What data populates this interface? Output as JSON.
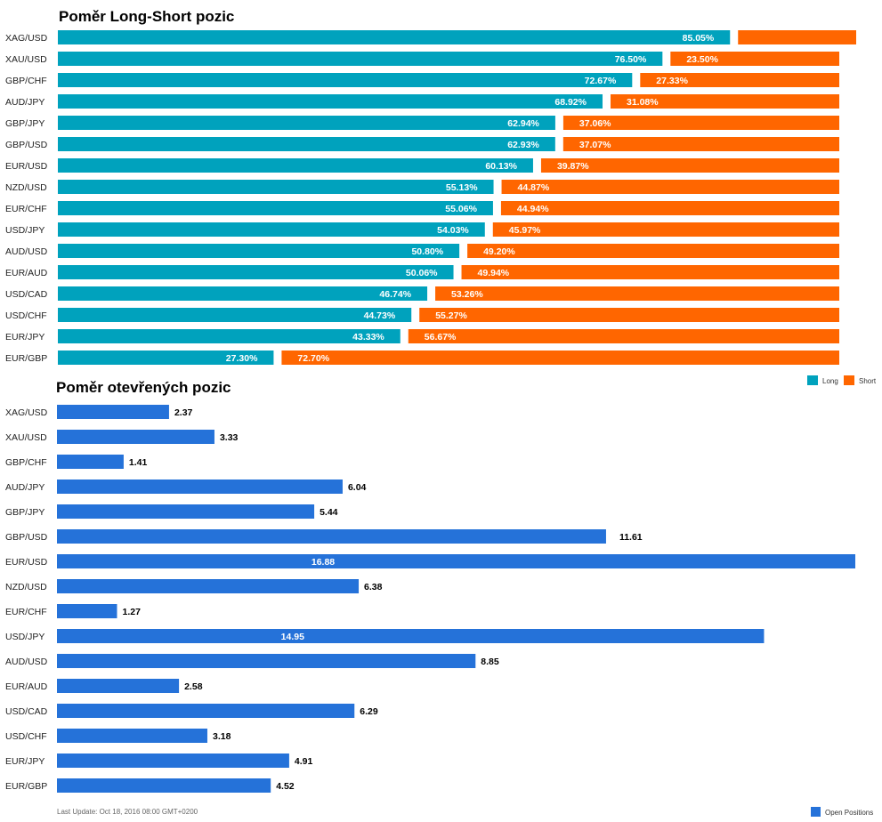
{
  "colors": {
    "long": "#00a2bd",
    "short": "#ff6600",
    "open": "#2572d9"
  },
  "chart_data": [
    {
      "type": "bar",
      "stacked": "percent",
      "orientation": "horizontal",
      "title": "Poměr Long-Short pozic",
      "categories": [
        "XAG/USD",
        "XAU/USD",
        "GBP/CHF",
        "AUD/JPY",
        "GBP/JPY",
        "GBP/USD",
        "EUR/USD",
        "NZD/USD",
        "EUR/CHF",
        "USD/JPY",
        "AUD/USD",
        "EUR/AUD",
        "USD/CAD",
        "USD/CHF",
        "EUR/JPY",
        "EUR/GBP"
      ],
      "series": [
        {
          "name": "Long",
          "values": [
            85.05,
            76.5,
            72.67,
            68.92,
            62.94,
            62.93,
            60.13,
            55.13,
            55.06,
            54.03,
            50.8,
            50.06,
            46.74,
            44.73,
            43.33,
            27.3
          ]
        },
        {
          "name": "Short",
          "values": [
            14.95,
            23.5,
            27.33,
            31.08,
            37.06,
            37.07,
            39.87,
            44.87,
            44.94,
            45.97,
            49.2,
            49.94,
            53.26,
            55.27,
            56.67,
            72.7
          ]
        }
      ],
      "data_labels": {
        "Long": [
          "85.05%",
          "76.50%",
          "72.67%",
          "68.92%",
          "62.94%",
          "62.93%",
          "60.13%",
          "55.13%",
          "55.06%",
          "54.03%",
          "50.80%",
          "50.06%",
          "46.74%",
          "44.73%",
          "43.33%",
          "27.30%"
        ],
        "Short": [
          "",
          "23.50%",
          "27.33%",
          "31.08%",
          "37.06%",
          "37.07%",
          "39.87%",
          "44.87%",
          "44.94%",
          "45.97%",
          "49.20%",
          "49.94%",
          "53.26%",
          "55.27%",
          "56.67%",
          "72.70%"
        ]
      },
      "legend_position": "bottom-right",
      "grid": false
    },
    {
      "type": "bar",
      "orientation": "horizontal",
      "title": "Poměr otevřených pozic",
      "categories": [
        "XAG/USD",
        "XAU/USD",
        "GBP/CHF",
        "AUD/JPY",
        "GBP/JPY",
        "GBP/USD",
        "EUR/USD",
        "NZD/USD",
        "EUR/CHF",
        "USD/JPY",
        "AUD/USD",
        "EUR/AUD",
        "USD/CAD",
        "USD/CHF",
        "EUR/JPY",
        "EUR/GBP"
      ],
      "series": [
        {
          "name": "Open Positions",
          "values": [
            2.37,
            3.33,
            1.41,
            6.04,
            5.44,
            11.61,
            16.88,
            6.38,
            1.27,
            14.95,
            8.85,
            2.58,
            6.29,
            3.18,
            4.91,
            4.52
          ]
        }
      ],
      "xlim": [
        0,
        16.88
      ],
      "legend_position": "bottom-right",
      "grid": false
    }
  ],
  "footer": {
    "last_update": "Last Update: Oct 18, 2016 08:00 GMT+0200"
  }
}
